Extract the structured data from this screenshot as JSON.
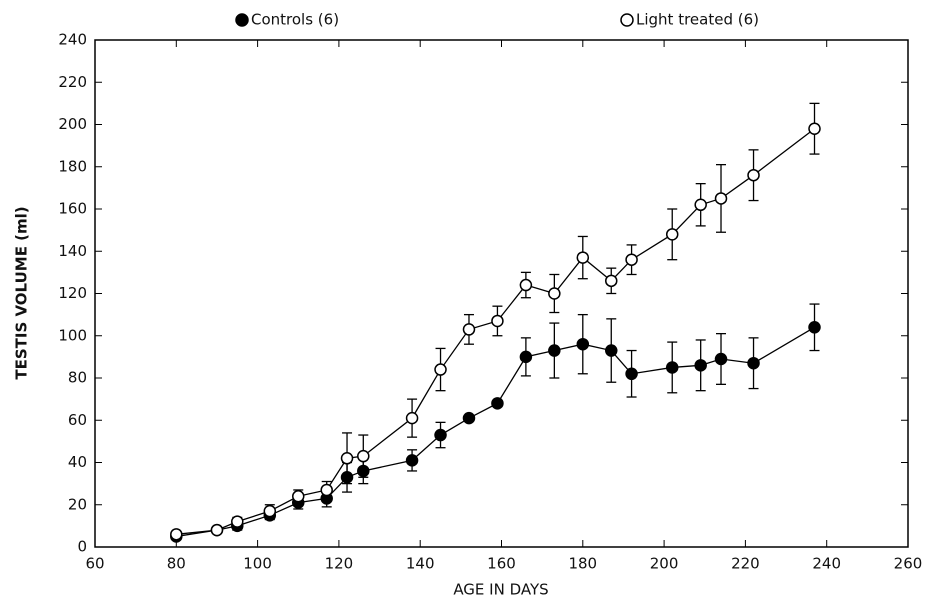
{
  "chart_data": {
    "type": "line",
    "xlabel": "AGE IN DAYS",
    "ylabel": "TESTIS VOLUME (ml)",
    "x": [
      80,
      90,
      95,
      103,
      110,
      117,
      122,
      126,
      138,
      145,
      152,
      159,
      166,
      173,
      180,
      187,
      192,
      202,
      209,
      214,
      222,
      237
    ],
    "series": [
      {
        "name": "Controls (6)",
        "color": "#000000",
        "marker": "filled",
        "values": [
          5,
          8,
          10,
          15,
          21,
          23,
          33,
          36,
          41,
          53,
          61,
          68,
          90,
          93,
          96,
          93,
          82,
          85,
          86,
          89,
          87,
          104
        ],
        "errors": [
          1,
          1,
          2,
          2,
          3,
          4,
          7,
          6,
          5,
          6,
          1,
          1,
          9,
          13,
          14,
          15,
          11,
          12,
          12,
          12,
          12,
          11
        ]
      },
      {
        "name": "Light treated (6)",
        "color": "#000000",
        "marker": "open",
        "values": [
          6,
          8,
          12,
          17,
          24,
          27,
          42,
          43,
          61,
          84,
          103,
          107,
          124,
          120,
          137,
          126,
          136,
          148,
          162,
          165,
          176,
          198
        ],
        "errors": [
          1,
          1,
          2,
          3,
          3,
          4,
          12,
          10,
          9,
          10,
          7,
          7,
          6,
          9,
          10,
          6,
          7,
          12,
          10,
          16,
          12,
          12
        ]
      }
    ],
    "xlim": [
      60,
      260
    ],
    "xticks": [
      60,
      80,
      100,
      120,
      140,
      160,
      180,
      200,
      220,
      240,
      260
    ],
    "ylim": [
      0,
      240
    ],
    "yticks": [
      0,
      20,
      40,
      60,
      80,
      100,
      120,
      140,
      160,
      180,
      200,
      220,
      240
    ],
    "grid": false
  }
}
